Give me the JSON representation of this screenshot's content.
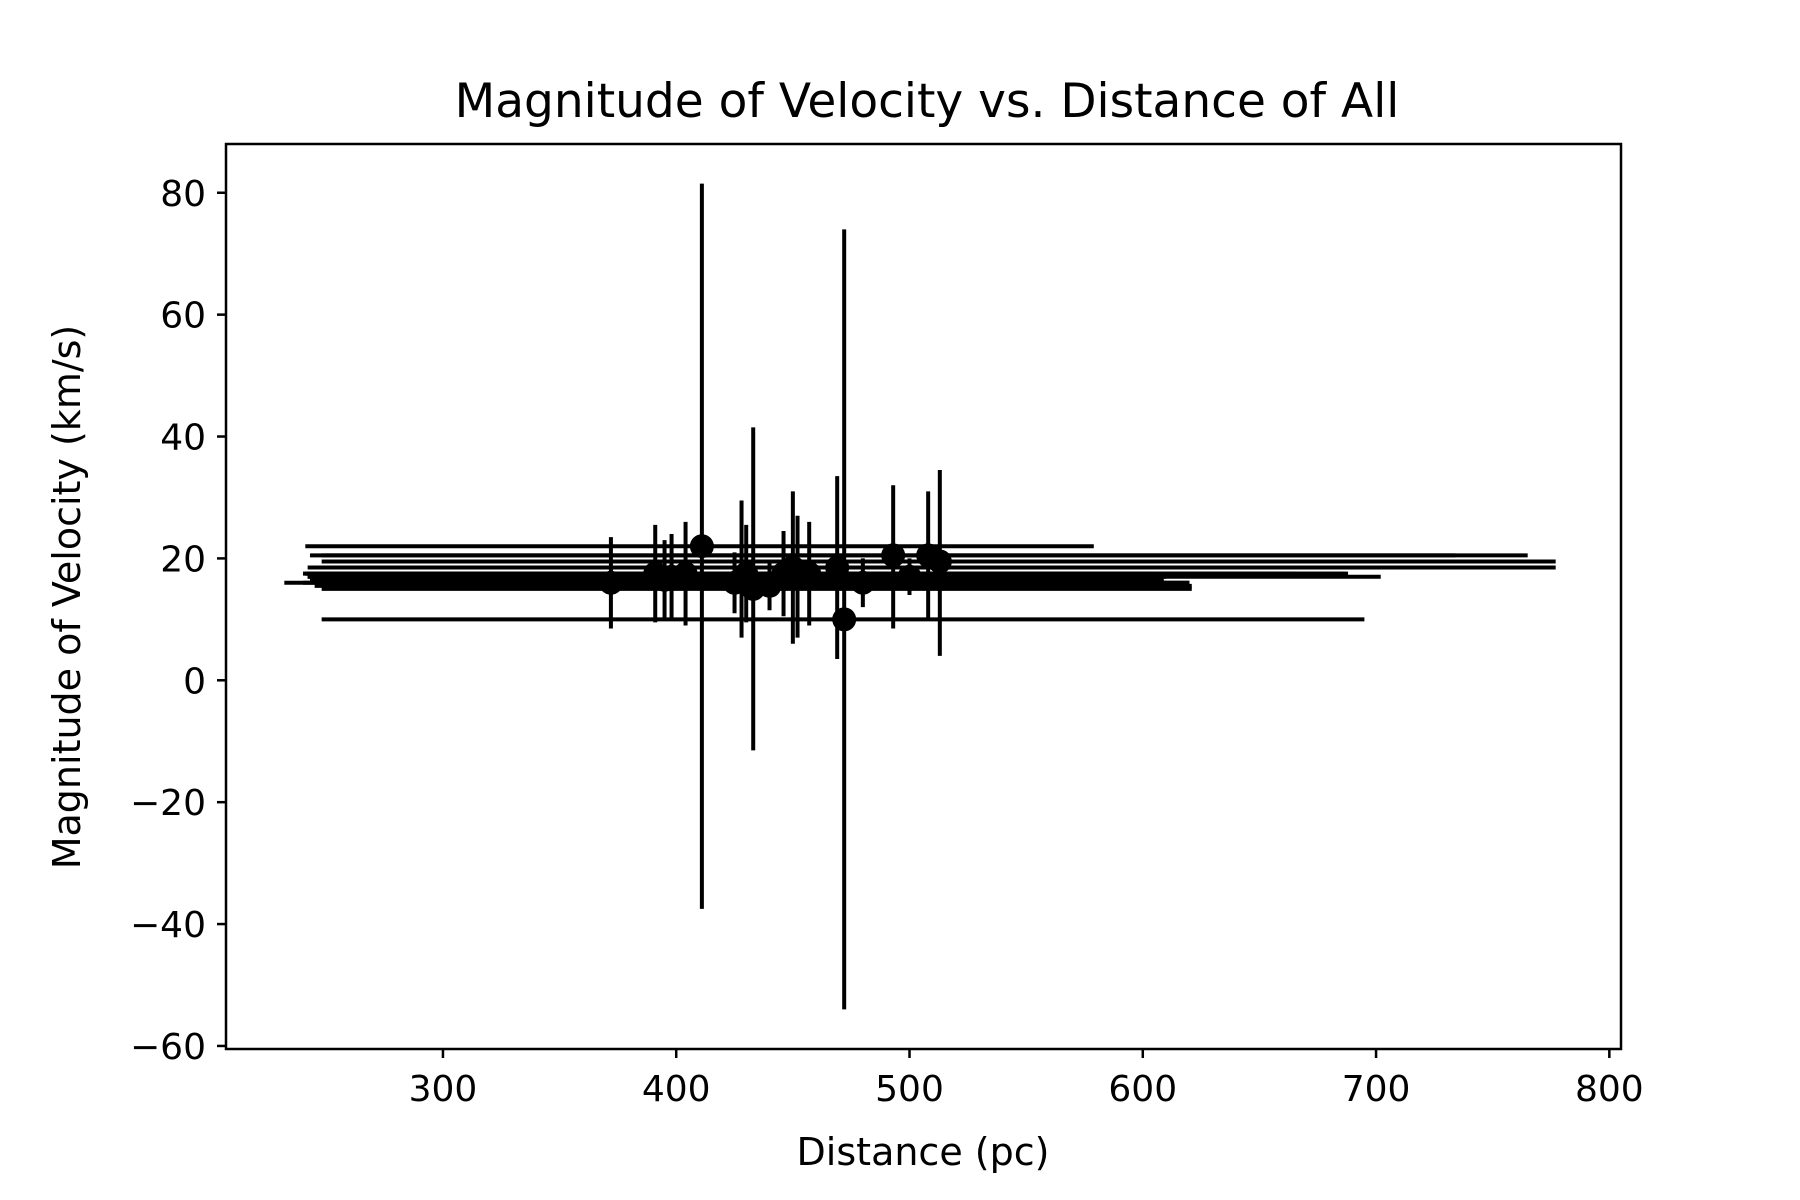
{
  "chart_data": {
    "type": "scatter",
    "title": "Magnitude of Velocity vs. Distance of All",
    "xlabel": "Distance (pc)",
    "ylabel": "Magnitude of Velocity (km/s)",
    "xlim": [
      207,
      805
    ],
    "ylim": [
      -60.5,
      88
    ],
    "xticks": [
      300,
      400,
      500,
      600,
      700,
      800
    ],
    "yticks": [
      -60,
      -40,
      -20,
      0,
      20,
      40,
      60,
      80
    ],
    "xtick_labels": [
      "300",
      "400",
      "500",
      "600",
      "700",
      "800"
    ],
    "ytick_labels": [
      "−60",
      "−40",
      "−20",
      "0",
      "20",
      "40",
      "60",
      "80"
    ],
    "grid": false,
    "color": "#000000",
    "series": [
      {
        "points": [
          {
            "x": 411,
            "y": 22.0,
            "yerr": [
              59.5,
              59.5
            ],
            "xerr": [
              170,
              168
            ]
          },
          {
            "x": 472,
            "y": 10.0,
            "yerr": [
              64.0,
              64.0
            ],
            "xerr": [
              224,
              223
            ]
          },
          {
            "x": 433,
            "y": 15.0,
            "yerr": [
              26.5,
              26.5
            ],
            "xerr": [
              185,
              188
            ]
          },
          {
            "x": 372,
            "y": 16.0,
            "yerr": [
              7.5,
              7.5
            ],
            "xerr": [
              140,
              248
            ]
          },
          {
            "x": 428,
            "y": 16.5,
            "yerr": [
              9.5,
              13.0
            ],
            "xerr": [
              182,
              181
            ]
          },
          {
            "x": 493,
            "y": 20.5,
            "yerr": [
              12.0,
              11.5
            ],
            "xerr": [
              245,
              241
            ]
          },
          {
            "x": 508,
            "y": 20.5,
            "yerr": [
              10.5,
              10.5
            ],
            "xerr": [
              265,
              257
            ]
          },
          {
            "x": 513,
            "y": 19.5,
            "yerr": [
              15.5,
              15.0
            ],
            "xerr": [
              265,
              264
            ]
          },
          {
            "x": 450,
            "y": 18.5,
            "yerr": [
              12.5,
              12.5
            ],
            "xerr": [
              208,
              327
            ]
          },
          {
            "x": 469,
            "y": 18.5,
            "yerr": [
              15.0,
              15.0
            ],
            "xerr": [
              226,
              219
            ]
          },
          {
            "x": 457,
            "y": 17.5,
            "yerr": [
              8.5,
              8.5
            ],
            "xerr": [
              215,
              230
            ]
          },
          {
            "x": 446,
            "y": 17.5,
            "yerr": [
              7.0,
              7.0
            ],
            "xerr": [
              205,
              242
            ]
          },
          {
            "x": 430,
            "y": 17.5,
            "yerr": [
              8.0,
              8.0
            ],
            "xerr": [
              190,
              235
            ]
          },
          {
            "x": 404,
            "y": 17.5,
            "yerr": [
              8.5,
              8.5
            ],
            "xerr": [
              162,
              200
            ]
          },
          {
            "x": 398,
            "y": 17.0,
            "yerr": [
              7.0,
              7.0
            ],
            "xerr": [
              155,
              190
            ]
          },
          {
            "x": 391,
            "y": 17.5,
            "yerr": [
              8.0,
              8.0
            ],
            "xerr": [
              150,
              215
            ]
          },
          {
            "x": 395,
            "y": 16.5,
            "yerr": [
              6.5,
              6.5
            ],
            "xerr": [
              152,
              170
            ]
          },
          {
            "x": 452,
            "y": 17.0,
            "yerr": [
              10.0,
              10.0
            ],
            "xerr": [
              210,
              250
            ]
          },
          {
            "x": 425,
            "y": 16.0,
            "yerr": [
              5.0,
              5.0
            ],
            "xerr": [
              185,
              195
            ]
          },
          {
            "x": 440,
            "y": 15.5,
            "yerr": [
              4.0,
              4.0
            ],
            "xerr": [
              195,
              181
            ]
          },
          {
            "x": 480,
            "y": 16.0,
            "yerr": [
              4.0,
              4.0
            ],
            "xerr": [
              230,
              130
            ]
          },
          {
            "x": 500,
            "y": 17.0,
            "yerr": [
              3.0,
              3.0
            ],
            "xerr": [
              258,
              110
            ]
          }
        ]
      }
    ]
  }
}
